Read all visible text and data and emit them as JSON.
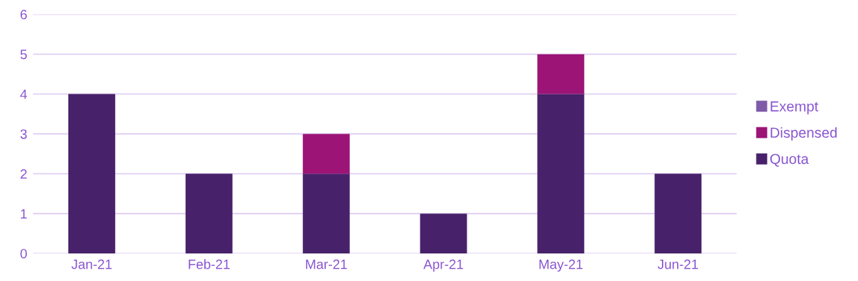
{
  "chart_data": {
    "type": "bar",
    "stacked": true,
    "categories": [
      "Jan-21",
      "Feb-21",
      "Mar-21",
      "Apr-21",
      "May-21",
      "Jun-21"
    ],
    "series": [
      {
        "name": "Quota",
        "color": "#48216b",
        "values": [
          4,
          2,
          2,
          1,
          4,
          2
        ]
      },
      {
        "name": "Dispensed",
        "color": "#9b1476",
        "values": [
          0,
          0,
          1,
          0,
          1,
          0
        ]
      },
      {
        "name": "Exempt",
        "color": "#7e5aa8",
        "values": [
          0,
          0,
          0,
          0,
          0,
          0
        ]
      }
    ],
    "ylim": [
      0,
      6
    ],
    "yticks": [
      0,
      1,
      2,
      3,
      4,
      5,
      6
    ],
    "grid": "y",
    "legend": "right"
  }
}
